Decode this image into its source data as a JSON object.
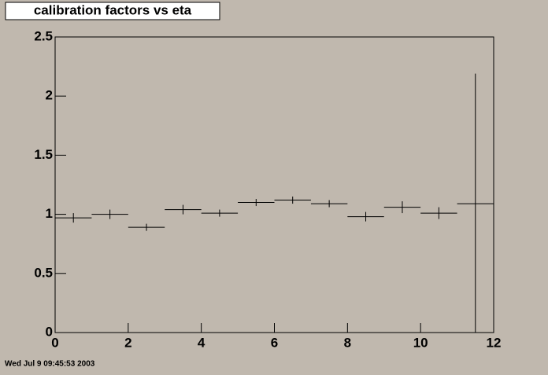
{
  "chart_data": {
    "type": "histogram",
    "title": "calibration factors vs eta",
    "timestamp": "Wed Jul  9 09:45:53 2003",
    "bins": [
      0,
      1,
      2,
      3,
      4,
      5,
      6,
      7,
      8,
      9,
      10,
      11,
      12
    ],
    "values": [
      0.97,
      1.0,
      0.89,
      1.04,
      1.01,
      1.1,
      1.12,
      1.09,
      0.98,
      1.06,
      1.01,
      1.09
    ],
    "errors": [
      0.04,
      0.04,
      0.03,
      0.04,
      0.03,
      0.03,
      0.03,
      0.03,
      0.04,
      0.05,
      0.05,
      1.1
    ],
    "color": "#000000",
    "xlim": [
      0,
      12
    ],
    "xticks": [
      0,
      2,
      4,
      6,
      8,
      10,
      12
    ],
    "ylim": [
      0,
      2.5
    ],
    "yticks": [
      0,
      0.5,
      1,
      1.5,
      2,
      2.5
    ]
  }
}
